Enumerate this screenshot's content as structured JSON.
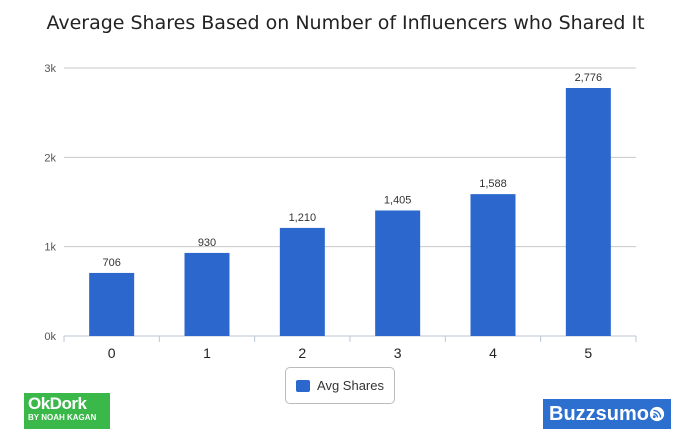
{
  "colors": {
    "bar": "#2b67cd",
    "grid": "#c8c8c8",
    "axis": "#bcc7d6"
  },
  "chart_data": {
    "type": "bar",
    "title": "Average Shares Based on Number of Influencers who Shared It",
    "categories": [
      "0",
      "1",
      "2",
      "3",
      "4",
      "5"
    ],
    "series": [
      {
        "name": "Avg Shares",
        "values": [
          706,
          930,
          1210,
          1405,
          1588,
          2776
        ]
      }
    ],
    "data_labels": [
      "706",
      "930",
      "1,210",
      "1,405",
      "1,588",
      "2,776"
    ],
    "y_ticks": [
      {
        "value": 0,
        "label": "0k"
      },
      {
        "value": 1000,
        "label": "1k"
      },
      {
        "value": 2000,
        "label": "2k"
      },
      {
        "value": 3000,
        "label": "3k"
      }
    ],
    "ylim": [
      0,
      3000
    ],
    "grid": true,
    "legend_position": "bottom-center"
  },
  "logos": {
    "left": {
      "name": "okdork-logo",
      "title": "OkDork",
      "subtitle": "BY NOAH KAGAN"
    },
    "right": {
      "name": "buzzsumo-logo",
      "text": "Buzzsumo"
    }
  }
}
